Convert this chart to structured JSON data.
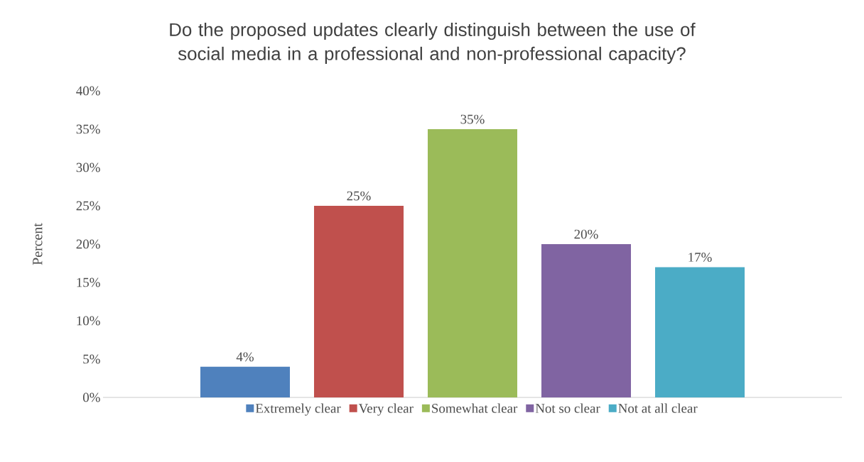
{
  "chart_data": {
    "type": "bar",
    "title": "Do the proposed updates clearly distinguish between the use of social media in a professional and non-professional capacity?",
    "ylabel": "Percent",
    "categories": [
      null
    ],
    "ylim": [
      0,
      40
    ],
    "yticks": [
      {
        "value": 0,
        "label": "0%"
      },
      {
        "value": 5,
        "label": "5%"
      },
      {
        "value": 10,
        "label": "10%"
      },
      {
        "value": 15,
        "label": "15%"
      },
      {
        "value": 20,
        "label": "20%"
      },
      {
        "value": 25,
        "label": "25%"
      },
      {
        "value": 30,
        "label": "30%"
      },
      {
        "value": 35,
        "label": "35%"
      },
      {
        "value": 40,
        "label": "40%"
      }
    ],
    "series": [
      {
        "name": "Extremely clear",
        "color": "#4f81bd",
        "values": [
          4
        ],
        "value_labels": [
          "4%"
        ]
      },
      {
        "name": "Very clear",
        "color": "#c0504d",
        "values": [
          25
        ],
        "value_labels": [
          "25%"
        ]
      },
      {
        "name": "Somewhat clear",
        "color": "#9bbb59",
        "values": [
          35
        ],
        "value_labels": [
          "35%"
        ]
      },
      {
        "name": "Not so clear",
        "color": "#8064a2",
        "values": [
          20
        ],
        "value_labels": [
          "20%"
        ]
      },
      {
        "name": "Not at all clear",
        "color": "#4bacc6",
        "values": [
          17
        ],
        "value_labels": [
          "17%"
        ]
      }
    ],
    "legend": "bottom",
    "grid": false
  }
}
